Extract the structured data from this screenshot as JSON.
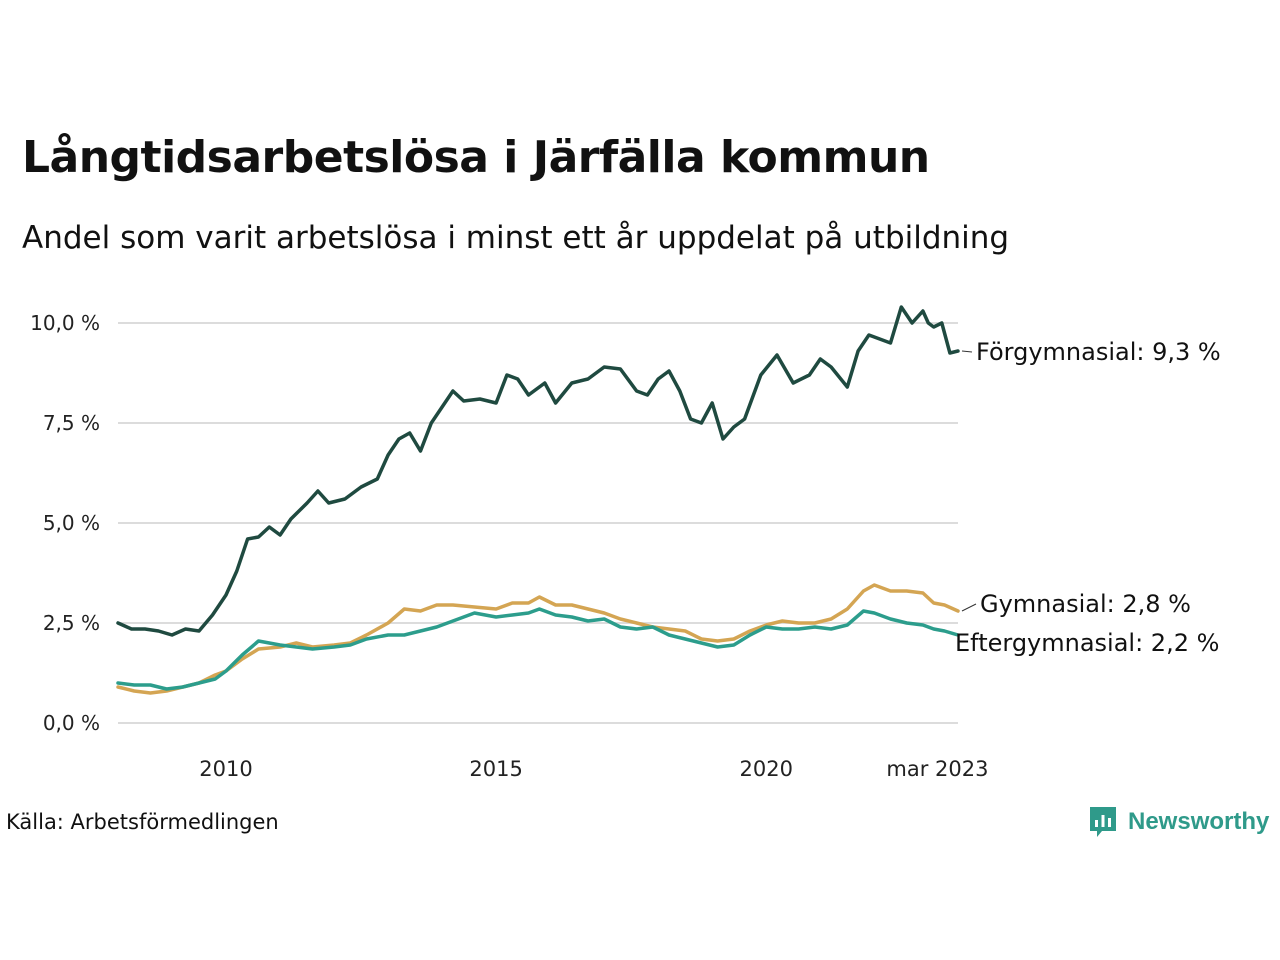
{
  "header": {
    "title": "Långtidsarbetslösa i Järfälla kommun",
    "subtitle": "Andel som varit arbetslösa i minst ett år uppdelat på utbildning"
  },
  "footer": {
    "source": "Källa: Arbetsförmedlingen",
    "brand": "Newsworthy",
    "brand_color": "#2f9a8a"
  },
  "chart_data": {
    "type": "line",
    "x_start": "2008-01",
    "x_end": "2023-03",
    "x_ticks": [
      {
        "year": 2010,
        "label": "2010"
      },
      {
        "year": 2015,
        "label": "2015"
      },
      {
        "year": 2020,
        "label": "2020"
      },
      {
        "year": 2023.17,
        "label": "mar 2023"
      }
    ],
    "y_ticks": [
      {
        "value": 0,
        "label": "0,0 %"
      },
      {
        "value": 2.5,
        "label": "2,5 %"
      },
      {
        "value": 5,
        "label": "5,0 %"
      },
      {
        "value": 7.5,
        "label": "7,5 %"
      },
      {
        "value": 10,
        "label": "10,0 %"
      }
    ],
    "ylim": [
      0,
      10.6
    ],
    "grid": true,
    "series": [
      {
        "name": "Förgymnasial",
        "label": "Förgymnasial: 9,3 %",
        "color": "#1f4a40",
        "points": [
          [
            2008.0,
            2.5
          ],
          [
            2008.25,
            2.35
          ],
          [
            2008.5,
            2.35
          ],
          [
            2008.75,
            2.3
          ],
          [
            2009.0,
            2.2
          ],
          [
            2009.25,
            2.35
          ],
          [
            2009.5,
            2.3
          ],
          [
            2009.75,
            2.7
          ],
          [
            2010.0,
            3.2
          ],
          [
            2010.2,
            3.8
          ],
          [
            2010.4,
            4.6
          ],
          [
            2010.6,
            4.65
          ],
          [
            2010.8,
            4.9
          ],
          [
            2011.0,
            4.7
          ],
          [
            2011.2,
            5.1
          ],
          [
            2011.5,
            5.5
          ],
          [
            2011.7,
            5.8
          ],
          [
            2011.9,
            5.5
          ],
          [
            2012.2,
            5.6
          ],
          [
            2012.5,
            5.9
          ],
          [
            2012.8,
            6.1
          ],
          [
            2013.0,
            6.7
          ],
          [
            2013.2,
            7.1
          ],
          [
            2013.4,
            7.25
          ],
          [
            2013.6,
            6.8
          ],
          [
            2013.8,
            7.5
          ],
          [
            2014.0,
            7.9
          ],
          [
            2014.2,
            8.3
          ],
          [
            2014.4,
            8.05
          ],
          [
            2014.7,
            8.1
          ],
          [
            2015.0,
            8.0
          ],
          [
            2015.2,
            8.7
          ],
          [
            2015.4,
            8.6
          ],
          [
            2015.6,
            8.2
          ],
          [
            2015.9,
            8.5
          ],
          [
            2016.1,
            8.0
          ],
          [
            2016.4,
            8.5
          ],
          [
            2016.7,
            8.6
          ],
          [
            2017.0,
            8.9
          ],
          [
            2017.3,
            8.85
          ],
          [
            2017.6,
            8.3
          ],
          [
            2017.8,
            8.2
          ],
          [
            2018.0,
            8.6
          ],
          [
            2018.2,
            8.8
          ],
          [
            2018.4,
            8.3
          ],
          [
            2018.6,
            7.6
          ],
          [
            2018.8,
            7.5
          ],
          [
            2019.0,
            8.0
          ],
          [
            2019.2,
            7.1
          ],
          [
            2019.4,
            7.4
          ],
          [
            2019.6,
            7.6
          ],
          [
            2019.9,
            8.7
          ],
          [
            2020.2,
            9.2
          ],
          [
            2020.5,
            8.5
          ],
          [
            2020.8,
            8.7
          ],
          [
            2021.0,
            9.1
          ],
          [
            2021.2,
            8.9
          ],
          [
            2021.5,
            8.4
          ],
          [
            2021.7,
            9.3
          ],
          [
            2021.9,
            9.7
          ],
          [
            2022.1,
            9.6
          ],
          [
            2022.3,
            9.5
          ],
          [
            2022.5,
            10.4
          ],
          [
            2022.7,
            10.0
          ],
          [
            2022.9,
            10.3
          ],
          [
            2023.0,
            10.0
          ],
          [
            2023.1,
            9.9
          ],
          [
            2023.25,
            10.0
          ],
          [
            2023.4,
            9.25
          ],
          [
            2023.55,
            9.3
          ]
        ]
      },
      {
        "name": "Gymnasial",
        "label": "Gymnasial: 2,8 %",
        "color": "#d4a553",
        "points": [
          [
            2008.0,
            0.9
          ],
          [
            2008.3,
            0.8
          ],
          [
            2008.6,
            0.75
          ],
          [
            2008.9,
            0.8
          ],
          [
            2009.2,
            0.9
          ],
          [
            2009.5,
            1.0
          ],
          [
            2009.8,
            1.2
          ],
          [
            2010.0,
            1.3
          ],
          [
            2010.3,
            1.6
          ],
          [
            2010.6,
            1.85
          ],
          [
            2011.0,
            1.9
          ],
          [
            2011.3,
            2.0
          ],
          [
            2011.6,
            1.9
          ],
          [
            2012.0,
            1.95
          ],
          [
            2012.3,
            2.0
          ],
          [
            2012.6,
            2.2
          ],
          [
            2013.0,
            2.5
          ],
          [
            2013.3,
            2.85
          ],
          [
            2013.6,
            2.8
          ],
          [
            2013.9,
            2.95
          ],
          [
            2014.2,
            2.95
          ],
          [
            2014.6,
            2.9
          ],
          [
            2015.0,
            2.85
          ],
          [
            2015.3,
            3.0
          ],
          [
            2015.6,
            3.0
          ],
          [
            2015.8,
            3.15
          ],
          [
            2016.1,
            2.95
          ],
          [
            2016.4,
            2.95
          ],
          [
            2016.7,
            2.85
          ],
          [
            2017.0,
            2.75
          ],
          [
            2017.3,
            2.6
          ],
          [
            2017.6,
            2.5
          ],
          [
            2017.9,
            2.4
          ],
          [
            2018.2,
            2.35
          ],
          [
            2018.5,
            2.3
          ],
          [
            2018.8,
            2.1
          ],
          [
            2019.1,
            2.05
          ],
          [
            2019.4,
            2.1
          ],
          [
            2019.7,
            2.3
          ],
          [
            2020.0,
            2.45
          ],
          [
            2020.3,
            2.55
          ],
          [
            2020.6,
            2.5
          ],
          [
            2020.9,
            2.5
          ],
          [
            2021.2,
            2.6
          ],
          [
            2021.5,
            2.85
          ],
          [
            2021.8,
            3.3
          ],
          [
            2022.0,
            3.45
          ],
          [
            2022.3,
            3.3
          ],
          [
            2022.6,
            3.3
          ],
          [
            2022.9,
            3.25
          ],
          [
            2023.1,
            3.0
          ],
          [
            2023.3,
            2.95
          ],
          [
            2023.55,
            2.8
          ]
        ]
      },
      {
        "name": "Eftergymnasial",
        "label": "Eftergymnasial: 2,2 %",
        "color": "#2c9d8c",
        "points": [
          [
            2008.0,
            1.0
          ],
          [
            2008.3,
            0.95
          ],
          [
            2008.6,
            0.95
          ],
          [
            2008.9,
            0.85
          ],
          [
            2009.2,
            0.9
          ],
          [
            2009.5,
            1.0
          ],
          [
            2009.8,
            1.1
          ],
          [
            2010.0,
            1.3
          ],
          [
            2010.3,
            1.7
          ],
          [
            2010.6,
            2.05
          ],
          [
            2011.0,
            1.95
          ],
          [
            2011.3,
            1.9
          ],
          [
            2011.6,
            1.85
          ],
          [
            2012.0,
            1.9
          ],
          [
            2012.3,
            1.95
          ],
          [
            2012.6,
            2.1
          ],
          [
            2013.0,
            2.2
          ],
          [
            2013.3,
            2.2
          ],
          [
            2013.6,
            2.3
          ],
          [
            2013.9,
            2.4
          ],
          [
            2014.2,
            2.55
          ],
          [
            2014.6,
            2.75
          ],
          [
            2015.0,
            2.65
          ],
          [
            2015.3,
            2.7
          ],
          [
            2015.6,
            2.75
          ],
          [
            2015.8,
            2.85
          ],
          [
            2016.1,
            2.7
          ],
          [
            2016.4,
            2.65
          ],
          [
            2016.7,
            2.55
          ],
          [
            2017.0,
            2.6
          ],
          [
            2017.3,
            2.4
          ],
          [
            2017.6,
            2.35
          ],
          [
            2017.9,
            2.4
          ],
          [
            2018.2,
            2.2
          ],
          [
            2018.5,
            2.1
          ],
          [
            2018.8,
            2.0
          ],
          [
            2019.1,
            1.9
          ],
          [
            2019.4,
            1.95
          ],
          [
            2019.7,
            2.2
          ],
          [
            2020.0,
            2.4
          ],
          [
            2020.3,
            2.35
          ],
          [
            2020.6,
            2.35
          ],
          [
            2020.9,
            2.4
          ],
          [
            2021.2,
            2.35
          ],
          [
            2021.5,
            2.45
          ],
          [
            2021.8,
            2.8
          ],
          [
            2022.0,
            2.75
          ],
          [
            2022.3,
            2.6
          ],
          [
            2022.6,
            2.5
          ],
          [
            2022.9,
            2.45
          ],
          [
            2023.1,
            2.35
          ],
          [
            2023.3,
            2.3
          ],
          [
            2023.55,
            2.2
          ]
        ]
      }
    ]
  }
}
